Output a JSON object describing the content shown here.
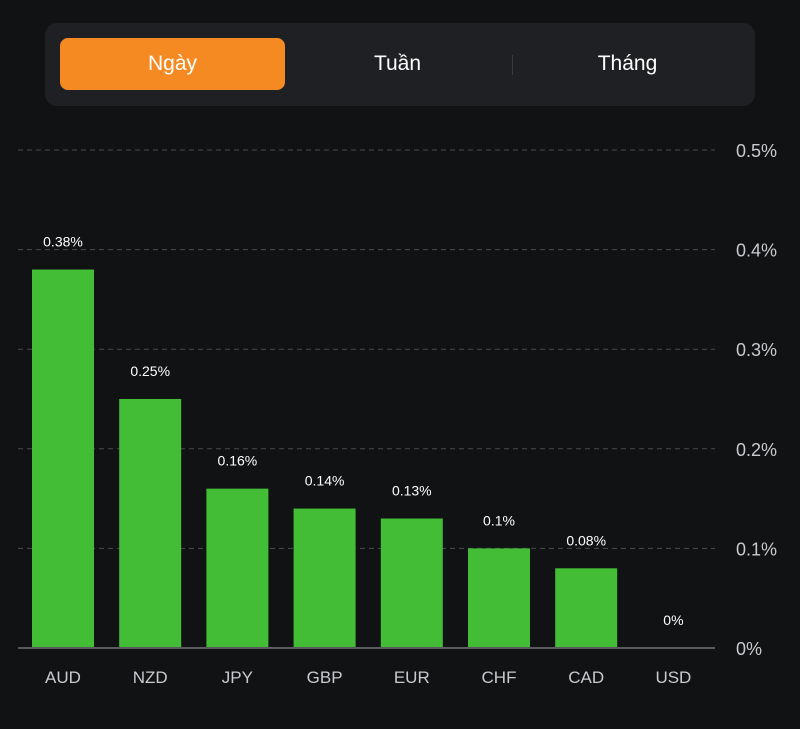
{
  "tabs": {
    "items": [
      {
        "label": "Ngày",
        "active": true
      },
      {
        "label": "Tuần",
        "active": false
      },
      {
        "label": "Tháng",
        "active": false
      }
    ],
    "active_color": "#f58a23"
  },
  "chart_data": {
    "type": "bar",
    "title": "",
    "xlabel": "",
    "ylabel": "",
    "categories": [
      "AUD",
      "NZD",
      "JPY",
      "GBP",
      "EUR",
      "CHF",
      "CAD",
      "USD"
    ],
    "values": [
      0.38,
      0.25,
      0.16,
      0.14,
      0.13,
      0.1,
      0.08,
      0
    ],
    "value_labels": [
      "0.38%",
      "0.25%",
      "0.16%",
      "0.14%",
      "0.13%",
      "0.1%",
      "0.08%",
      "0%"
    ],
    "ylim": [
      0,
      0.5
    ],
    "yticks": [
      0,
      0.1,
      0.2,
      0.3,
      0.4,
      0.5
    ],
    "ytick_labels": [
      "0%",
      "0.1%",
      "0.2%",
      "0.3%",
      "0.4%",
      "0.5%"
    ],
    "y_axis_position": "right",
    "grid": true,
    "bar_color": "#44bd36",
    "legend": "none"
  }
}
